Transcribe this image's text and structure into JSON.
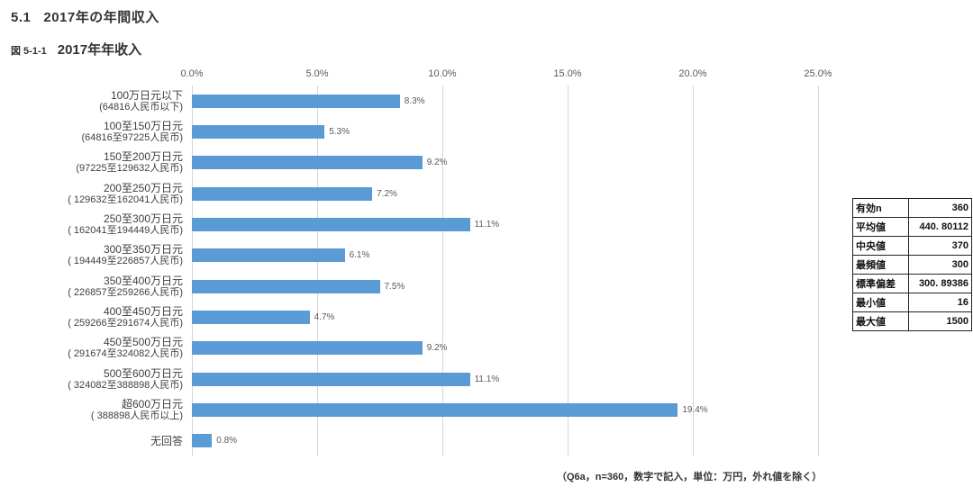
{
  "page": {
    "section_number": "5.1",
    "section_title": "2017年の年間収入",
    "figure_label": "図 5-1-1",
    "figure_title": "2017年年收入",
    "footnote": "（Q6a，n=360，数字で記入，単位：万円，外れ値を除く）"
  },
  "chart_data": {
    "type": "bar",
    "orientation": "horizontal",
    "title": "2017年年收入",
    "xlabel": "",
    "ylabel": "",
    "xlim": [
      0,
      25
    ],
    "grid": true,
    "bar_color": "#5b9bd5",
    "gridline_color": "#d6d6d6",
    "x_ticks": [
      "0.0%",
      "5.0%",
      "10.0%",
      "15.0%",
      "20.0%",
      "25.0%"
    ],
    "categories": [
      {
        "line1": "100万日元以下",
        "line2": "(64816人民币以下)"
      },
      {
        "line1": "100至150万日元",
        "line2": "(64816至97225人民币)"
      },
      {
        "line1": "150至200万日元",
        "line2": "(97225至129632人民币)"
      },
      {
        "line1": "200至250万日元",
        "line2": "( 129632至162041人民币)"
      },
      {
        "line1": "250至300万日元",
        "line2": "( 162041至194449人民币)"
      },
      {
        "line1": "300至350万日元",
        "line2": "( 194449至226857人民币)"
      },
      {
        "line1": "350至400万日元",
        "line2": "( 226857至259266人民币)"
      },
      {
        "line1": "400至450万日元",
        "line2": "( 259266至291674人民币)"
      },
      {
        "line1": "450至500万日元",
        "line2": "( 291674至324082人民币)"
      },
      {
        "line1": "500至600万日元",
        "line2": "( 324082至388898人民币)"
      },
      {
        "line1": "超600万日元",
        "line2": "( 388898人民币以上)"
      },
      {
        "line1": "无回答",
        "line2": ""
      }
    ],
    "values": [
      8.3,
      5.3,
      9.2,
      7.2,
      11.1,
      6.1,
      7.5,
      4.7,
      9.2,
      11.1,
      19.4,
      0.8
    ],
    "value_labels": [
      "8.3%",
      "5.3%",
      "9.2%",
      "7.2%",
      "11.1%",
      "6.1%",
      "7.5%",
      "4.7%",
      "9.2%",
      "11.1%",
      "19.4%",
      "0.8%"
    ]
  },
  "stats_table": {
    "rows": [
      {
        "label": "有効n",
        "value": "360"
      },
      {
        "label": "平均値",
        "value": "440. 80112"
      },
      {
        "label": "中央値",
        "value": "370"
      },
      {
        "label": "最頻値",
        "value": "300"
      },
      {
        "label": "標準偏差",
        "value": "300. 89386"
      },
      {
        "label": "最小値",
        "value": "16"
      },
      {
        "label": "最大値",
        "value": "1500"
      }
    ]
  }
}
